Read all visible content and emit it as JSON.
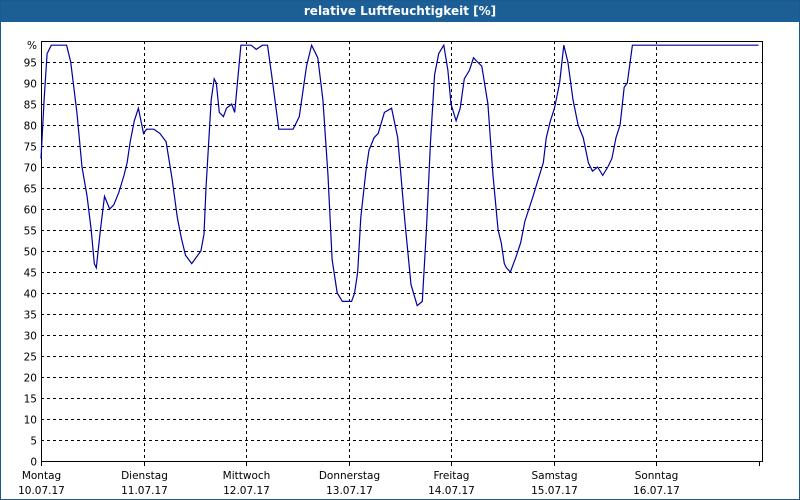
{
  "window": {
    "title": "relative Luftfeuchtigkeit [%]"
  },
  "chart_data": {
    "type": "line",
    "title": "relative Luftfeuchtigkeit [%]",
    "y_unit_label": "%",
    "ylim": [
      0,
      100
    ],
    "y_ticks": [
      0,
      5,
      10,
      15,
      20,
      25,
      30,
      35,
      40,
      45,
      50,
      55,
      60,
      65,
      70,
      75,
      80,
      85,
      90,
      95
    ],
    "xlim": [
      0,
      7
    ],
    "x_ticks": [
      {
        "day": "Montag",
        "date": "10.07.17"
      },
      {
        "day": "Dienstag",
        "date": "11.07.17"
      },
      {
        "day": "Mittwoch",
        "date": "12.07.17"
      },
      {
        "day": "Donnerstag",
        "date": "13.07.17"
      },
      {
        "day": "Freitag",
        "date": "14.07.17"
      },
      {
        "day": "Samstag",
        "date": "15.07.17"
      },
      {
        "day": "Sonntag",
        "date": "16.07.17"
      }
    ],
    "grid": true,
    "line_color": "#0000a0",
    "series": [
      {
        "x": [
          0.0,
          0.03,
          0.06,
          0.1,
          0.17,
          0.25,
          0.29,
          0.35,
          0.4,
          0.45,
          0.49,
          0.52,
          0.54,
          0.58,
          0.62,
          0.67,
          0.71,
          0.76,
          0.81,
          0.84,
          0.87,
          0.91,
          0.95,
          1.0,
          1.03,
          1.05,
          1.1,
          1.16,
          1.22,
          1.28,
          1.33,
          1.37,
          1.41,
          1.47,
          1.5,
          1.53,
          1.56,
          1.59,
          1.61,
          1.66,
          1.69,
          1.71,
          1.74,
          1.78,
          1.81,
          1.86,
          1.89,
          1.92,
          1.95,
          2.0,
          2.05,
          2.1,
          2.16,
          2.21,
          2.25,
          2.32,
          2.38,
          2.46,
          2.52,
          2.59,
          2.64,
          2.7,
          2.75,
          2.8,
          2.84,
          2.89,
          2.94,
          2.99,
          3.03,
          3.06,
          3.09,
          3.12,
          3.17,
          3.2,
          3.25,
          3.29,
          3.35,
          3.42,
          3.48,
          3.55,
          3.61,
          3.67,
          3.72,
          3.76,
          3.8,
          3.84,
          3.88,
          3.93,
          3.97,
          4.0,
          4.05,
          4.09,
          4.13,
          4.18,
          4.22,
          4.26,
          4.3,
          4.36,
          4.41,
          4.46,
          4.49,
          4.52,
          4.54,
          4.58,
          4.61,
          4.64,
          4.68,
          4.72,
          4.76,
          4.8,
          4.85,
          4.9,
          4.93,
          4.97,
          5.01,
          5.06,
          5.1,
          5.14,
          5.19,
          5.24,
          5.29,
          5.34,
          5.38,
          5.43,
          5.48,
          5.53,
          5.57,
          5.61,
          5.65,
          5.69,
          5.72,
          5.77,
          5.81,
          5.85,
          5.9,
          5.95,
          6.0,
          6.04,
          6.08,
          6.12,
          6.16,
          6.19,
          6.23,
          6.27,
          6.31,
          6.36,
          6.4,
          6.45,
          6.49,
          6.54,
          6.59,
          6.63,
          6.67,
          6.71,
          6.75,
          6.8,
          6.84,
          6.9,
          6.95,
          7.0
        ],
        "values": [
          72,
          86,
          97,
          99,
          99,
          99,
          95,
          83,
          70,
          63,
          55,
          47,
          46,
          55,
          63,
          60,
          61,
          64,
          68,
          71,
          76,
          81,
          84,
          78,
          79,
          79,
          79,
          78,
          76,
          67,
          58,
          53,
          49,
          47,
          48,
          49,
          50,
          54,
          65,
          86,
          91,
          90,
          83,
          82,
          84,
          85,
          83,
          91,
          99,
          99,
          99,
          98,
          99,
          99,
          92,
          79,
          79,
          79,
          82,
          94,
          99,
          96,
          86,
          68,
          48,
          40,
          38,
          38,
          38,
          40,
          45,
          58,
          69,
          74,
          77,
          78,
          83,
          84,
          77,
          57,
          42,
          37,
          38,
          55,
          76,
          92,
          97,
          99,
          93,
          85,
          81,
          84,
          91,
          93,
          96,
          95,
          94,
          85,
          68,
          55,
          52,
          47,
          46,
          45,
          47,
          49,
          52,
          57,
          60,
          63,
          67,
          71,
          77,
          81,
          84,
          90,
          99,
          95,
          86,
          80,
          77,
          71,
          69,
          70,
          68,
          70,
          72,
          77,
          80,
          89,
          90,
          99,
          99,
          99,
          99,
          99,
          99,
          99,
          99,
          99,
          99,
          99,
          99,
          99,
          99,
          99,
          99,
          99,
          99,
          99,
          99,
          99,
          99,
          99,
          99,
          99,
          99,
          99,
          99,
          99
        ]
      }
    ]
  }
}
